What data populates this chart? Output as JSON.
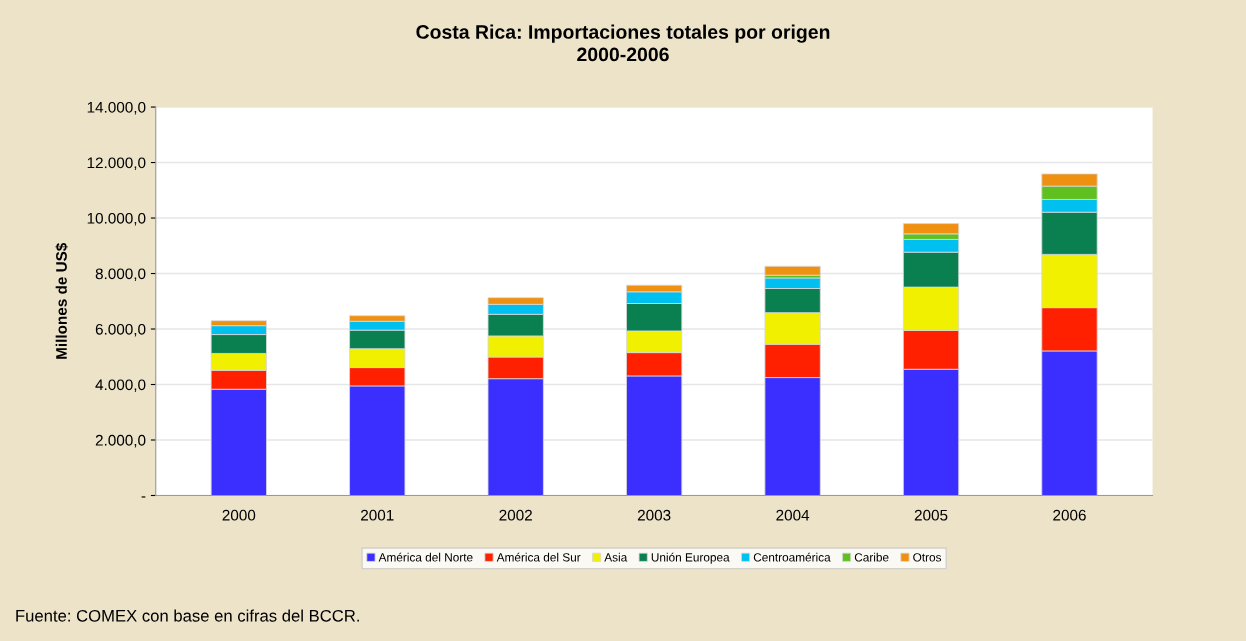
{
  "chart_data": {
    "type": "bar",
    "stacked": true,
    "title": "Costa Rica: Importaciones totales por origen\n2000-2006",
    "ylabel": "Millones de US$",
    "categories": [
      "2000",
      "2001",
      "2002",
      "2003",
      "2004",
      "2005",
      "2006"
    ],
    "series": [
      {
        "name": "América del Norte",
        "color": "#3a2fff",
        "values": [
          3830,
          3950,
          4210,
          4310,
          4250,
          4550,
          5210
        ]
      },
      {
        "name": "América del Sur",
        "color": "#ff2000",
        "values": [
          680,
          660,
          780,
          840,
          1200,
          1400,
          1560
        ]
      },
      {
        "name": "Asia",
        "color": "#f0f000",
        "values": [
          610,
          680,
          760,
          780,
          1140,
          1560,
          1920
        ]
      },
      {
        "name": "Unión Europea",
        "color": "#0a8050",
        "values": [
          680,
          670,
          780,
          990,
          870,
          1260,
          1520
        ]
      },
      {
        "name": "Centroamérica",
        "color": "#00c0f0",
        "values": [
          320,
          320,
          360,
          420,
          380,
          460,
          460
        ]
      },
      {
        "name": "Caribe",
        "color": "#60c020",
        "values": [
          null,
          null,
          null,
          null,
          100,
          200,
          480
        ]
      },
      {
        "name": "Otros",
        "color": "#f09010",
        "values": [
          180,
          200,
          240,
          240,
          320,
          370,
          440
        ]
      }
    ],
    "ylim": [
      0,
      14000
    ],
    "yticks": [
      {
        "value": 0,
        "label": "-"
      },
      {
        "value": 2000,
        "label": "2.000,0"
      },
      {
        "value": 4000,
        "label": "4.000,0"
      },
      {
        "value": 6000,
        "label": "6.000,0"
      },
      {
        "value": 8000,
        "label": "8.000,0"
      },
      {
        "value": 10000,
        "label": "10.000,0"
      },
      {
        "value": 12000,
        "label": "12.000,0"
      },
      {
        "value": 14000,
        "label": "14.000,0"
      }
    ],
    "grid": "y",
    "legend": "bottom",
    "annotations": [
      "Fuente: COMEX con base en cifras del BCCR."
    ]
  }
}
